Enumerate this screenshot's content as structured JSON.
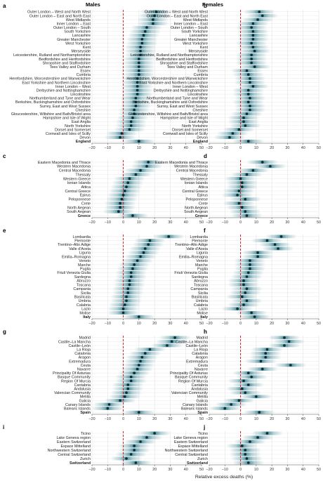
{
  "figure": {
    "left_title": "Males",
    "right_title": "Females",
    "xlabel": "Relative excess deaths (%)"
  },
  "chart_data": [
    {
      "panel": "a",
      "type": "scatter",
      "country": "England",
      "sex": "Males",
      "xlim": [
        -20,
        50
      ],
      "xticks": [
        -20,
        -10,
        0,
        10,
        20,
        30,
        40,
        50
      ],
      "reference_line": 0,
      "categories": [
        "Outer London – West and North West",
        "Outer London – East and North East",
        "West Midlands",
        "Inner London – East",
        "Outer London – South",
        "South Yorkshire",
        "Lancashire",
        "Greater Manchester",
        "West Yorkshire",
        "Kent",
        "Merseyside",
        "Leicestershire, Rutland and Northamptonshire",
        "Bedfordshire and Hertfordshire",
        "Shropshire and Staffordshire",
        "Tees Valley and Durham",
        "Essex",
        "Cumbria",
        "Herefordshire, Worcestershire and Warwickshire",
        "East Yorkshire and Northern Lincolnshire",
        "Inner London – West",
        "Derbyshire and Nottinghamshire",
        "Lincolnshire",
        "Northumberland and Tyne and Wear",
        "Berkshire, Buckinghamshire and Oxfordshire",
        "Surrey, East and West Sussex",
        "Cheshire",
        "Gloucestershire, Wiltshire and Bath/Bristol area",
        "Hampshire and Isle of Wight",
        "East Anglia",
        "North Yorkshire",
        "Dorset and Somerset",
        "Cornwall and Isles of Scilly",
        "Devon",
        "England"
      ],
      "values": [
        21,
        20,
        19,
        19,
        15,
        14,
        13,
        12,
        12,
        11,
        11,
        11,
        10,
        10,
        10,
        10,
        10,
        9,
        9,
        9,
        9,
        9,
        8,
        8,
        8,
        7,
        7,
        6,
        5,
        5,
        4,
        -1,
        -2,
        10
      ],
      "bold": [
        "England"
      ]
    },
    {
      "panel": "b",
      "type": "scatter",
      "country": "England",
      "sex": "Females",
      "xlim": [
        -20,
        50
      ],
      "xticks": [
        -20,
        -10,
        0,
        10,
        20,
        30,
        40,
        50
      ],
      "reference_line": 0,
      "values": [
        12,
        14,
        11,
        8,
        7,
        8,
        8,
        8,
        7,
        8,
        9,
        7,
        7,
        7,
        9,
        4,
        5,
        6,
        6,
        8,
        5,
        5,
        6,
        5,
        6,
        6,
        4,
        2,
        2,
        3,
        -1,
        -5,
        -7,
        5
      ]
    },
    {
      "panel": "c",
      "type": "scatter",
      "country": "Greece",
      "sex": "Males",
      "xlim": [
        -20,
        50
      ],
      "xticks": [
        -20,
        -10,
        0,
        10,
        20,
        30,
        40,
        50
      ],
      "reference_line": 0,
      "categories": [
        "Eastern Macedonia and Thrace",
        "Western Macedonia",
        "Central Macedonia",
        "Thessaly",
        "Western Greece",
        "Ionian Islands",
        "Attica",
        "Central Greece",
        "Epirus",
        "Peloponnese",
        "Crete",
        "North Aegean",
        "South Aegean",
        "Greece"
      ],
      "values": [
        16,
        15,
        11,
        8,
        4,
        3,
        2,
        1,
        0,
        -1,
        -2,
        -2,
        -3,
        6
      ],
      "bold": [
        "Greece"
      ]
    },
    {
      "panel": "d",
      "type": "scatter",
      "country": "Greece",
      "sex": "Females",
      "xlim": [
        -20,
        50
      ],
      "xticks": [
        -20,
        -10,
        0,
        10,
        20,
        30,
        40,
        50
      ],
      "reference_line": 0,
      "values": [
        14,
        19,
        8,
        4,
        0,
        1,
        1,
        -1,
        -2,
        3,
        -1,
        1,
        3,
        4
      ]
    },
    {
      "panel": "e",
      "type": "scatter",
      "country": "Italy",
      "sex": "Males",
      "xlim": [
        -20,
        50
      ],
      "xticks": [
        -20,
        -10,
        0,
        10,
        20,
        30,
        40,
        50
      ],
      "reference_line": 0,
      "categories": [
        "Lombardia",
        "Piemonte",
        "Trentino–Alto Adige",
        "Valle d'Aosta",
        "Liguria",
        "Emilia–Romagna",
        "Veneto",
        "Marche",
        "Puglia",
        "Friuli Venezia Giulia",
        "Sardegna",
        "Abruzzo",
        "Toscana",
        "Campania",
        "Sicilia",
        "Basilicata",
        "Umbria",
        "Calabria",
        "Lazio",
        "Molise",
        "Italy"
      ],
      "values": [
        29,
        17,
        16,
        14,
        13,
        11,
        9,
        7,
        6,
        5,
        5,
        4,
        4,
        3,
        3,
        2,
        2,
        1,
        0,
        0,
        10
      ],
      "bold": [
        "Italy"
      ]
    },
    {
      "panel": "f",
      "type": "scatter",
      "country": "Italy",
      "sex": "Females",
      "xlim": [
        -20,
        50
      ],
      "xticks": [
        -20,
        -10,
        0,
        10,
        20,
        30,
        40,
        50
      ],
      "reference_line": 0,
      "values": [
        26,
        17,
        22,
        24,
        11,
        11,
        6,
        6,
        6,
        5,
        4,
        2,
        2,
        4,
        3,
        1,
        4,
        2,
        -2,
        7,
        9
      ]
    },
    {
      "panel": "g",
      "type": "scatter",
      "country": "Spain",
      "sex": "Males",
      "xlim": [
        -20,
        50
      ],
      "xticks": [
        -20,
        -10,
        0,
        10,
        20,
        30,
        40,
        50
      ],
      "reference_line": 0,
      "categories": [
        "Madrid",
        "Castile–La Mancha",
        "Castile–León",
        "La Rioja",
        "Catalonia",
        "Aragon",
        "Extremadura",
        "Ceuta",
        "Navarre",
        "Principality Of Asturias",
        "Basque Community",
        "Region Of Murcia",
        "Cantabria",
        "Andalusia",
        "Valencian Community",
        "Melilla",
        "Galicia",
        "Canary Islands",
        "Balearic Islands",
        "Spain"
      ],
      "values": [
        33,
        31,
        28,
        17,
        14,
        12,
        11,
        10,
        9,
        7,
        5,
        5,
        3,
        3,
        2,
        1,
        -2,
        -9,
        -10,
        10
      ],
      "bold": [
        "Spain"
      ]
    },
    {
      "panel": "h",
      "type": "scatter",
      "country": "Spain",
      "sex": "Females",
      "xlim": [
        -20,
        50
      ],
      "xticks": [
        -20,
        -10,
        0,
        10,
        20,
        30,
        40,
        50
      ],
      "reference_line": 0,
      "values": [
        28,
        31,
        28,
        17,
        16,
        16,
        13,
        32,
        14,
        5,
        7,
        2,
        5,
        1,
        3,
        10,
        -1,
        -6,
        -10,
        12
      ]
    },
    {
      "panel": "i",
      "type": "scatter",
      "country": "Switzerland",
      "sex": "Males",
      "xlim": [
        -20,
        50
      ],
      "xticks": [
        -20,
        -10,
        0,
        10,
        20,
        30,
        40,
        50
      ],
      "reference_line": 0,
      "categories": [
        "Ticino",
        "Lake Geneva region",
        "Eastern Switzerland",
        "Espace Mittelland",
        "Northwestern Switzerland",
        "Central Switzerland",
        "Zurich",
        "Switzerland"
      ],
      "values": [
        20,
        15,
        11,
        7,
        7,
        5,
        2,
        8
      ],
      "bold": [
        "Switzerland"
      ]
    },
    {
      "panel": "j",
      "type": "scatter",
      "country": "Switzerland",
      "sex": "Females",
      "xlim": [
        -20,
        50
      ],
      "xticks": [
        -20,
        -10,
        0,
        10,
        20,
        30,
        40,
        50
      ],
      "reference_line": 0,
      "values": [
        17,
        11,
        6,
        1,
        3,
        3,
        4,
        5
      ]
    }
  ],
  "colors": {
    "band": "#2e7d8c",
    "point": "#0f2a33",
    "zero_line": "#cc1f1f",
    "grid": "#e2e2e2",
    "axis": "#555555"
  }
}
